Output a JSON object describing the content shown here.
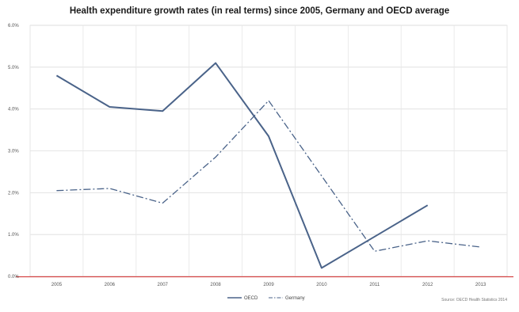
{
  "chart_data": {
    "type": "line",
    "title": "Health expenditure growth rates (in real terms) since 2005, Germany and OECD average",
    "source": "Source: OECD Health Statistics 2014",
    "x": [
      "2005",
      "2006",
      "2007",
      "2008",
      "2009",
      "2010",
      "2011",
      "2012",
      "2013"
    ],
    "y_ticks": [
      "0.0%",
      "1.0%",
      "2.0%",
      "3.0%",
      "4.0%",
      "5.0%",
      "6.0%"
    ],
    "ylim": [
      0,
      6
    ],
    "grid": true,
    "legend_position": "bottom",
    "series": [
      {
        "name": "OECD",
        "style": "solid",
        "color": "#4a6389",
        "values": [
          4.8,
          4.05,
          3.95,
          5.1,
          3.35,
          0.2,
          0.95,
          1.7,
          null
        ]
      },
      {
        "name": "Germany",
        "style": "dash-dot",
        "color": "#4a6389",
        "values": [
          2.05,
          2.1,
          1.75,
          2.85,
          4.2,
          2.4,
          0.6,
          0.85,
          0.7
        ]
      }
    ]
  }
}
